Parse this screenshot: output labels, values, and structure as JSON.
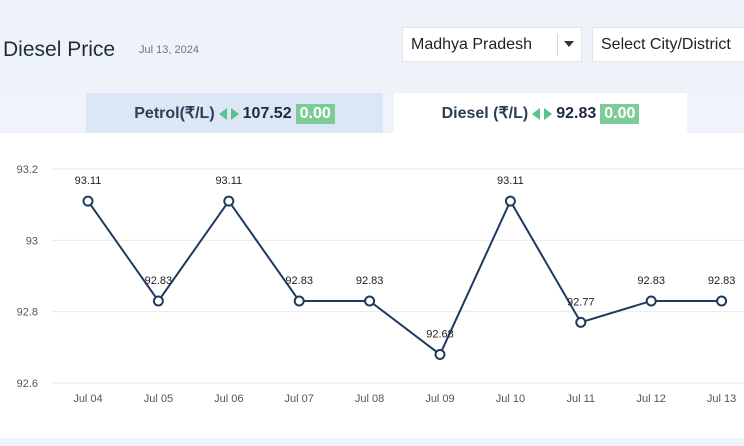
{
  "header": {
    "title": "Diesel Price",
    "date": "Jul 13, 2024",
    "state_select": {
      "value": "Madhya Pradesh"
    },
    "city_select": {
      "value": "Select City/District"
    }
  },
  "tabs": [
    {
      "label": "Petrol(₹/L)",
      "price": "107.52",
      "change": "0.00",
      "active": false
    },
    {
      "label": "Diesel (₹/L)",
      "price": "92.83",
      "change": "0.00",
      "active": true
    }
  ],
  "colors": {
    "line": "#1f3a5f",
    "accent_green": "#7ecb9a",
    "arrow_green": "#5cc08a",
    "tab_inactive": "#dbe6f6"
  },
  "chart_data": {
    "type": "line",
    "categories": [
      "Jul 04",
      "Jul 05",
      "Jul 06",
      "Jul 07",
      "Jul 08",
      "Jul 09",
      "Jul 10",
      "Jul 11",
      "Jul 12",
      "Jul 13"
    ],
    "values": [
      93.11,
      92.83,
      93.11,
      92.83,
      92.83,
      92.68,
      93.11,
      92.77,
      92.83,
      92.83
    ],
    "data_labels": [
      "93.11",
      "92.83",
      "93.11",
      "92.83",
      "92.83",
      "92.68",
      "93.11",
      "92.77",
      "92.83",
      "92.83"
    ],
    "yticks": [
      "92.6",
      "92.8",
      "93",
      "93.2"
    ],
    "ylim": [
      92.6,
      93.2
    ],
    "grid": true,
    "title": "",
    "xlabel": "",
    "ylabel": ""
  }
}
